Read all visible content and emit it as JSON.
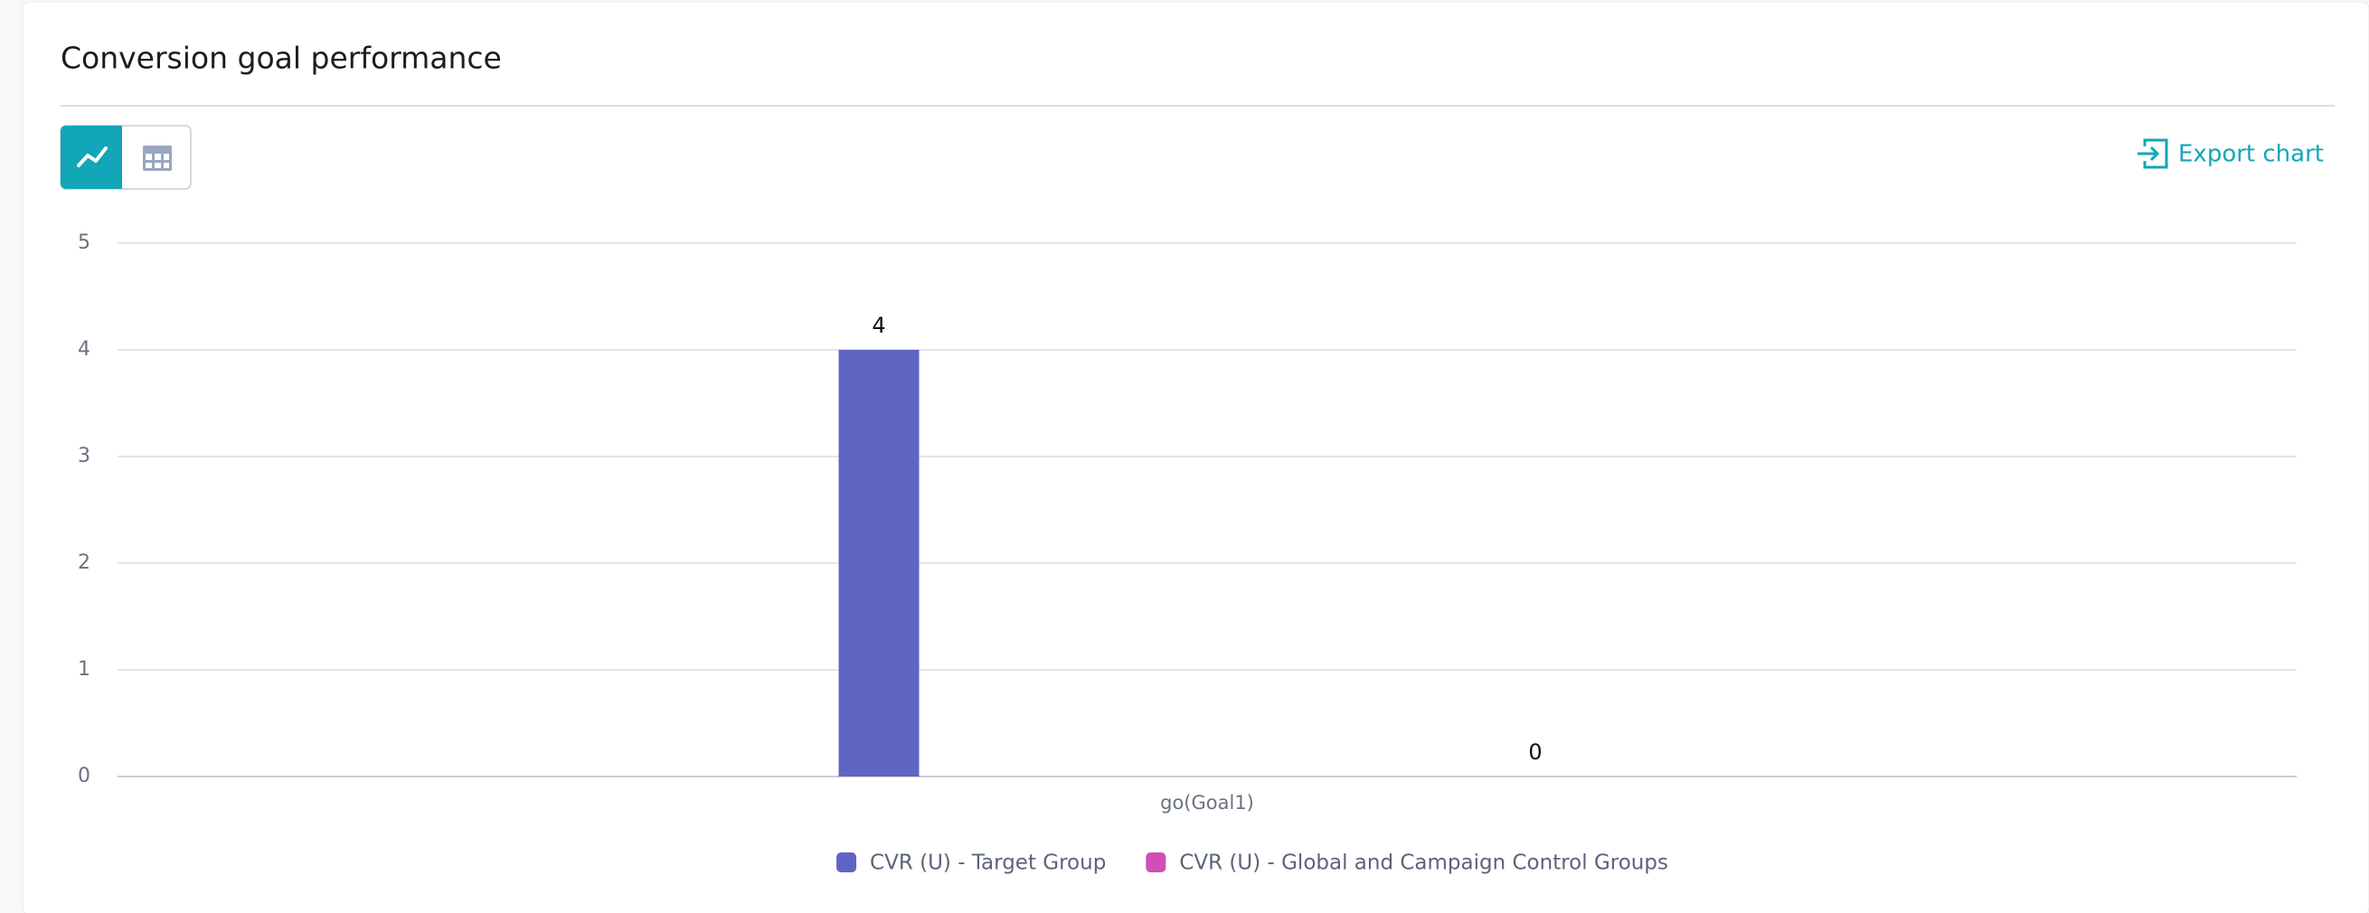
{
  "chart_data": {
    "type": "bar",
    "title": "Conversion goal performance",
    "categories": [
      "go(Goal1)"
    ],
    "series": [
      {
        "name": "CVR (U) - Target Group",
        "color": "#6065c4",
        "values": [
          4
        ]
      },
      {
        "name": "CVR (U) - Global and Campaign Control Groups",
        "color": "#d04eb8",
        "values": [
          0
        ]
      }
    ],
    "ylim": [
      0,
      5
    ],
    "yticks": [
      0,
      1,
      2,
      3,
      4,
      5
    ],
    "grid": true,
    "legend": "bottom"
  },
  "toolbar": {
    "export_button": "Export chart"
  }
}
